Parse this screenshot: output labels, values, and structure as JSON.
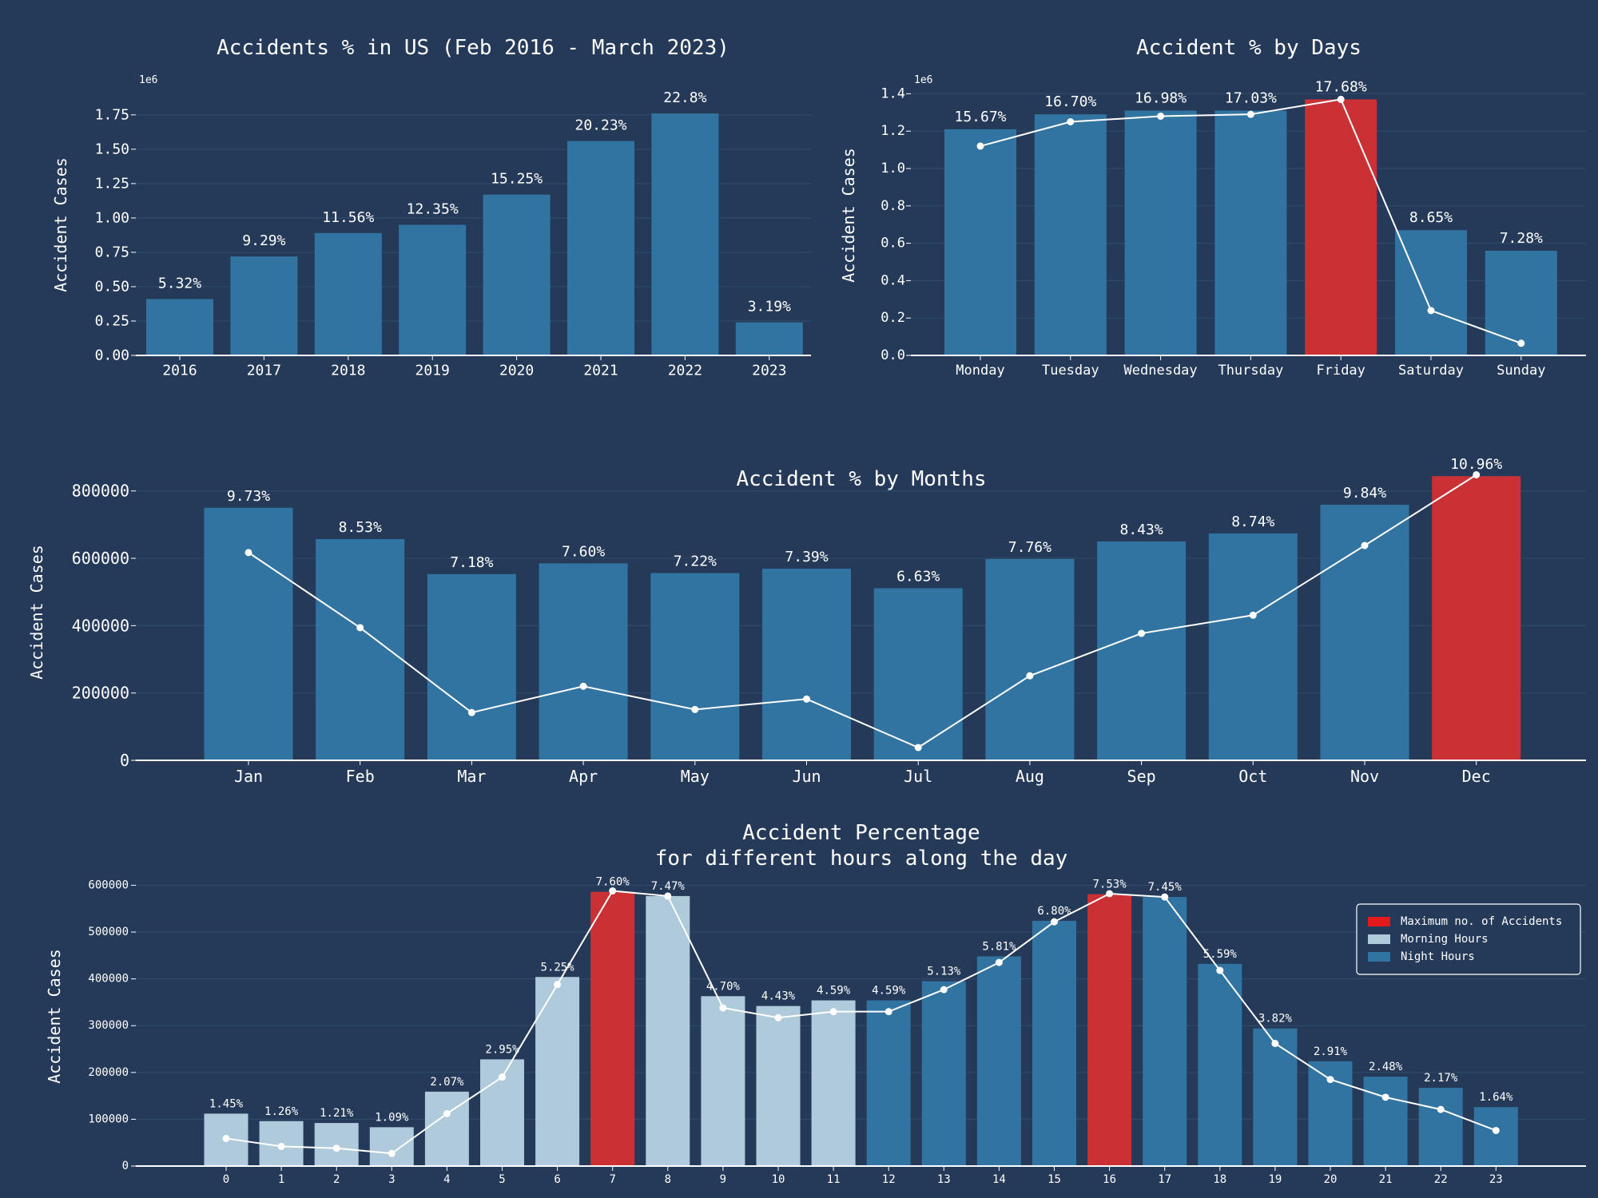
{
  "colors": {
    "background": "#253a59",
    "bar": "#3274a1",
    "highlight": "#c93135",
    "morning": "#aecadb",
    "grid": "#2f4a6b",
    "line": "#ffffff",
    "text": "#ffffff"
  },
  "chart_data": [
    {
      "type": "bar",
      "title": "Accidents % in US (Feb 2016 - March 2023)",
      "ylabel": "Accident Cases",
      "xlabel": "",
      "scale_label": "1e6",
      "ylim": [
        0,
        1.9
      ],
      "yticks": [
        "0.00",
        "0.25",
        "0.50",
        "0.75",
        "1.00",
        "1.25",
        "1.50",
        "1.75"
      ],
      "grid": true,
      "categories": [
        "2016",
        "2017",
        "2018",
        "2019",
        "2020",
        "2021",
        "2022",
        "2023"
      ],
      "values": [
        0.41,
        0.72,
        0.89,
        0.95,
        1.17,
        1.56,
        1.76,
        0.24
      ],
      "labels": [
        "5.32%",
        "9.29%",
        "11.56%",
        "12.35%",
        "15.25%",
        "20.23%",
        "22.8%",
        "3.19%"
      ]
    },
    {
      "type": "bar",
      "title": "Accident % by Days",
      "ylabel": "Accident Cases",
      "xlabel": "",
      "scale_label": "1e6",
      "ylim": [
        0,
        1.5
      ],
      "yticks": [
        "0.0",
        "0.2",
        "0.4",
        "0.6",
        "0.8",
        "1.0",
        "1.2",
        "1.4"
      ],
      "grid": true,
      "categories": [
        "Monday",
        "Tuesday",
        "Wednesday",
        "Thursday",
        "Friday",
        "Saturday",
        "Sunday"
      ],
      "values": [
        1.21,
        1.29,
        1.31,
        1.31,
        1.37,
        0.67,
        0.56
      ],
      "labels": [
        "15.67%",
        "16.70%",
        "16.98%",
        "17.03%",
        "17.68%",
        "8.65%",
        "7.28%"
      ],
      "highlight": [
        4
      ],
      "line_values": [
        1.12,
        1.25,
        1.28,
        1.29,
        1.37,
        0.24,
        0.065
      ]
    },
    {
      "type": "bar",
      "title": "Accident % by Months",
      "ylabel": "Accident Cases",
      "xlabel": "",
      "ylim": [
        0,
        880000
      ],
      "yticks": [
        "0",
        "200000",
        "400000",
        "600000",
        "800000"
      ],
      "grid": true,
      "categories": [
        "Jan",
        "Feb",
        "Mar",
        "Apr",
        "May",
        "Jun",
        "Jul",
        "Aug",
        "Sep",
        "Oct",
        "Nov",
        "Dec"
      ],
      "values": [
        750000,
        657000,
        553000,
        585000,
        556000,
        569000,
        511000,
        598000,
        650000,
        674000,
        759000,
        844000
      ],
      "labels": [
        "9.73%",
        "8.53%",
        "7.18%",
        "7.60%",
        "7.22%",
        "7.39%",
        "6.63%",
        "7.76%",
        "8.43%",
        "8.74%",
        "9.84%",
        "10.96%"
      ],
      "highlight": [
        11
      ],
      "line_values": [
        617000,
        394000,
        142000,
        220000,
        151000,
        182000,
        38000,
        251000,
        377000,
        431000,
        638000,
        848000
      ]
    },
    {
      "type": "bar",
      "title": "Accident Percentage",
      "subtitle": "for different hours along the day",
      "ylabel": "Accident Cases",
      "xlabel": "",
      "ylim": [
        0,
        640000
      ],
      "yticks": [
        "0",
        "100000",
        "200000",
        "300000",
        "400000",
        "500000",
        "600000"
      ],
      "grid": true,
      "categories": [
        "0",
        "1",
        "2",
        "3",
        "4",
        "5",
        "6",
        "7",
        "8",
        "9",
        "10",
        "11",
        "12",
        "13",
        "14",
        "15",
        "16",
        "17",
        "18",
        "19",
        "20",
        "21",
        "22",
        "23"
      ],
      "values": [
        112000,
        96000,
        92000,
        83000,
        159000,
        228000,
        404000,
        586000,
        577000,
        363000,
        342000,
        354000,
        354000,
        395000,
        448000,
        524000,
        581000,
        575000,
        432000,
        294000,
        224000,
        191000,
        167000,
        126000
      ],
      "labels": [
        "1.45%",
        "1.26%",
        "1.21%",
        "1.09%",
        "2.07%",
        "2.95%",
        "5.25%",
        "7.60%",
        "7.47%",
        "4.70%",
        "4.43%",
        "4.59%",
        "4.59%",
        "5.13%",
        "5.81%",
        "6.80%",
        "7.53%",
        "7.45%",
        "5.59%",
        "3.82%",
        "2.91%",
        "2.48%",
        "2.17%",
        "1.64%"
      ],
      "groups": [
        "morning",
        "morning",
        "morning",
        "morning",
        "morning",
        "morning",
        "morning",
        "max",
        "morning",
        "morning",
        "morning",
        "morning",
        "night",
        "night",
        "night",
        "night",
        "max",
        "night",
        "night",
        "night",
        "night",
        "night",
        "night",
        "night"
      ],
      "line_values": [
        59000,
        42000,
        38000,
        27000,
        112000,
        190000,
        388000,
        588000,
        577000,
        338000,
        317000,
        330000,
        330000,
        377000,
        435000,
        522000,
        582000,
        575000,
        418000,
        262000,
        185000,
        147000,
        121000,
        76000
      ],
      "legend_position": "top-right",
      "legend": [
        {
          "label": "Maximum no. of Accidents",
          "color": "#e31a1c"
        },
        {
          "label": "Morning Hours",
          "color": "#aecadb"
        },
        {
          "label": "Night Hours",
          "color": "#3274a1"
        }
      ]
    }
  ]
}
